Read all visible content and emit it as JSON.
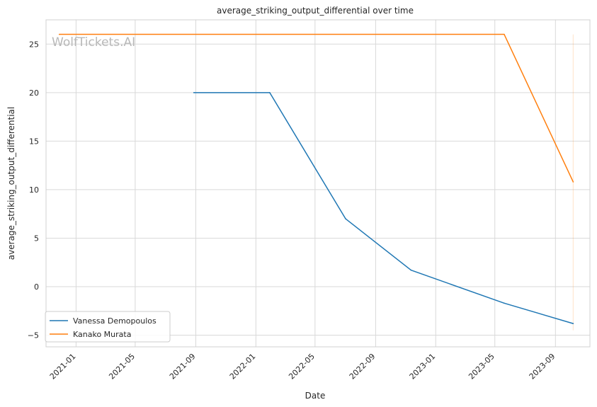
{
  "chart_data": {
    "type": "line",
    "title": "average_striking_output_differential over time",
    "xlabel": "Date",
    "ylabel": "average_striking_output_differential",
    "watermark": "WolfTickets.AI",
    "x_axis": {
      "type": "date",
      "range": [
        "2020-11-01",
        "2023-11-10"
      ],
      "ticks": [
        "2021-01-01",
        "2021-05-01",
        "2021-09-01",
        "2022-01-01",
        "2022-05-01",
        "2022-09-01",
        "2023-01-01",
        "2023-05-01",
        "2023-09-01"
      ],
      "tick_labels": [
        "2021-01",
        "2021-05",
        "2021-09",
        "2022-01",
        "2022-05",
        "2022-09",
        "2023-01",
        "2023-05",
        "2023-09"
      ]
    },
    "y_axis": {
      "ylim": [
        -6.2,
        27.5
      ],
      "ticks": [
        -5,
        0,
        5,
        10,
        15,
        20,
        25
      ],
      "tick_labels": [
        "−5",
        "0",
        "5",
        "10",
        "15",
        "20",
        "25"
      ]
    },
    "grid": true,
    "legend_position": "lower-left",
    "series": [
      {
        "name": "Vanessa Demopoulos",
        "color": "#1f77b4",
        "points": [
          {
            "x": "2021-08-28",
            "y": 20.0
          },
          {
            "x": "2022-01-29",
            "y": 20.0
          },
          {
            "x": "2022-07-02",
            "y": 7.0
          },
          {
            "x": "2022-11-12",
            "y": 1.7
          },
          {
            "x": "2023-05-20",
            "y": -1.7
          },
          {
            "x": "2023-10-07",
            "y": -3.8
          }
        ]
      },
      {
        "name": "Kanako Murata",
        "color": "#ff7f0e",
        "points": [
          {
            "x": "2020-11-28",
            "y": 26.0
          },
          {
            "x": "2023-05-20",
            "y": 26.0
          },
          {
            "x": "2023-10-07",
            "y": 10.8
          }
        ]
      }
    ],
    "annotations": [
      {
        "type": "vline",
        "x": "2023-10-07",
        "y_from": -4.5,
        "y_to": 26.0,
        "color": "#ff7f0e"
      }
    ]
  }
}
